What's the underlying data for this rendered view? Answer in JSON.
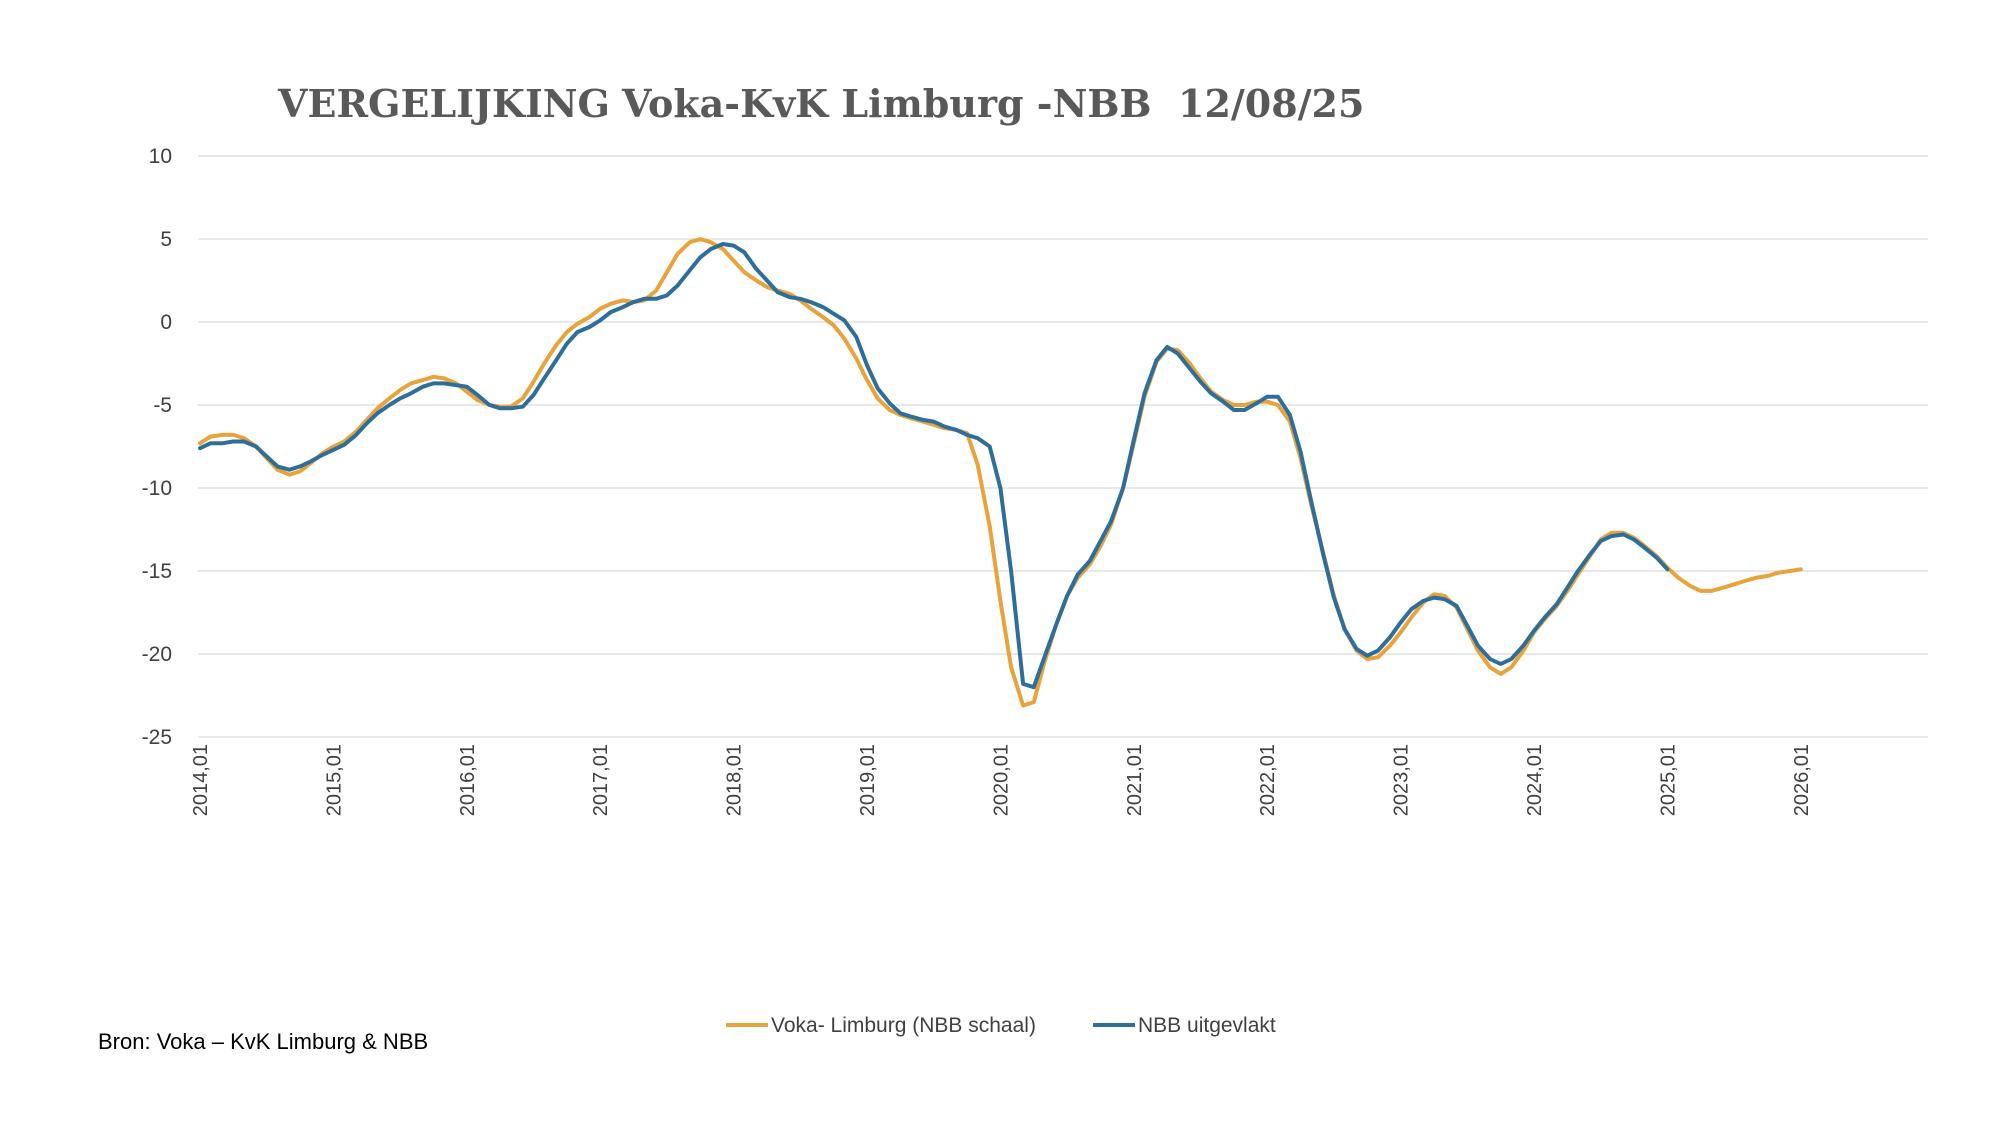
{
  "title_parts": [
    "VERGELIJKING",
    "Voka-KvK Limburg -NBB",
    "12/08/25"
  ],
  "source": "Bron: Voka – KvK Limburg & NBB",
  "chart_data": {
    "type": "line",
    "title": "VERGELIJKING      Voka-KvK Limburg -NBB      12/08/25",
    "xlabel": "",
    "ylabel": "",
    "ylim": [
      -25,
      10
    ],
    "yticks": [
      10,
      5,
      0,
      -5,
      -10,
      -15,
      -20,
      -25
    ],
    "xticks": [
      "2014,01",
      "2015,01",
      "2016,01",
      "2017,01",
      "2018,01",
      "2019,01",
      "2020,01",
      "2021,01",
      "2022,01",
      "2023,01",
      "2024,01",
      "2025,01",
      "2026,01"
    ],
    "grid": true,
    "legend": "bottom",
    "series": [
      {
        "name": "Voka- Limburg (NBB schaal)",
        "color": "#E8A33A",
        "points": [
          [
            2014.0,
            -7.3
          ],
          [
            2014.08,
            -6.9
          ],
          [
            2014.17,
            -6.8
          ],
          [
            2014.25,
            -6.8
          ],
          [
            2014.33,
            -7.0
          ],
          [
            2014.42,
            -7.5
          ],
          [
            2014.5,
            -8.2
          ],
          [
            2014.58,
            -8.9
          ],
          [
            2014.67,
            -9.2
          ],
          [
            2014.75,
            -9.0
          ],
          [
            2014.83,
            -8.5
          ],
          [
            2014.92,
            -7.9
          ],
          [
            2015.0,
            -7.5
          ],
          [
            2015.08,
            -7.2
          ],
          [
            2015.17,
            -6.6
          ],
          [
            2015.25,
            -5.9
          ],
          [
            2015.33,
            -5.2
          ],
          [
            2015.42,
            -4.6
          ],
          [
            2015.5,
            -4.1
          ],
          [
            2015.58,
            -3.7
          ],
          [
            2015.67,
            -3.5
          ],
          [
            2015.75,
            -3.3
          ],
          [
            2015.83,
            -3.4
          ],
          [
            2015.92,
            -3.7
          ],
          [
            2016.0,
            -4.2
          ],
          [
            2016.08,
            -4.7
          ],
          [
            2016.17,
            -5.0
          ],
          [
            2016.25,
            -5.1
          ],
          [
            2016.33,
            -5.1
          ],
          [
            2016.42,
            -4.6
          ],
          [
            2016.5,
            -3.6
          ],
          [
            2016.58,
            -2.5
          ],
          [
            2016.67,
            -1.4
          ],
          [
            2016.75,
            -0.6
          ],
          [
            2016.83,
            -0.1
          ],
          [
            2016.92,
            0.3
          ],
          [
            2017.0,
            0.8
          ],
          [
            2017.08,
            1.1
          ],
          [
            2017.17,
            1.3
          ],
          [
            2017.25,
            1.2
          ],
          [
            2017.33,
            1.3
          ],
          [
            2017.42,
            1.9
          ],
          [
            2017.5,
            3.0
          ],
          [
            2017.58,
            4.1
          ],
          [
            2017.67,
            4.8
          ],
          [
            2017.75,
            5.0
          ],
          [
            2017.83,
            4.8
          ],
          [
            2017.92,
            4.4
          ],
          [
            2018.0,
            3.7
          ],
          [
            2018.08,
            3.0
          ],
          [
            2018.17,
            2.5
          ],
          [
            2018.25,
            2.1
          ],
          [
            2018.33,
            1.9
          ],
          [
            2018.42,
            1.7
          ],
          [
            2018.5,
            1.3
          ],
          [
            2018.58,
            0.8
          ],
          [
            2018.67,
            0.3
          ],
          [
            2018.75,
            -0.2
          ],
          [
            2018.83,
            -1.0
          ],
          [
            2018.92,
            -2.2
          ],
          [
            2019.0,
            -3.5
          ],
          [
            2019.08,
            -4.6
          ],
          [
            2019.17,
            -5.3
          ],
          [
            2019.25,
            -5.6
          ],
          [
            2019.33,
            -5.8
          ],
          [
            2019.42,
            -6.0
          ],
          [
            2019.5,
            -6.2
          ],
          [
            2019.58,
            -6.4
          ],
          [
            2019.67,
            -6.5
          ],
          [
            2019.75,
            -6.7
          ],
          [
            2019.83,
            -8.6
          ],
          [
            2019.92,
            -12.3
          ],
          [
            2020.0,
            -16.8
          ],
          [
            2020.08,
            -20.8
          ],
          [
            2020.17,
            -23.1
          ],
          [
            2020.25,
            -22.9
          ],
          [
            2020.33,
            -20.5
          ],
          [
            2020.42,
            -18.2
          ],
          [
            2020.5,
            -16.5
          ],
          [
            2020.58,
            -15.4
          ],
          [
            2020.67,
            -14.6
          ],
          [
            2020.75,
            -13.5
          ],
          [
            2020.83,
            -12.2
          ],
          [
            2020.92,
            -10.0
          ],
          [
            2021.0,
            -7.3
          ],
          [
            2021.08,
            -4.5
          ],
          [
            2021.17,
            -2.4
          ],
          [
            2021.25,
            -1.6
          ],
          [
            2021.33,
            -1.7
          ],
          [
            2021.42,
            -2.5
          ],
          [
            2021.5,
            -3.4
          ],
          [
            2021.58,
            -4.2
          ],
          [
            2021.67,
            -4.7
          ],
          [
            2021.75,
            -5.0
          ],
          [
            2021.83,
            -5.0
          ],
          [
            2021.92,
            -4.8
          ],
          [
            2022.0,
            -4.8
          ],
          [
            2022.08,
            -5.0
          ],
          [
            2022.17,
            -6.0
          ],
          [
            2022.25,
            -8.2
          ],
          [
            2022.33,
            -11.0
          ],
          [
            2022.42,
            -13.9
          ],
          [
            2022.5,
            -16.5
          ],
          [
            2022.58,
            -18.5
          ],
          [
            2022.67,
            -19.8
          ],
          [
            2022.75,
            -20.3
          ],
          [
            2022.83,
            -20.2
          ],
          [
            2022.92,
            -19.5
          ],
          [
            2023.0,
            -18.7
          ],
          [
            2023.08,
            -17.8
          ],
          [
            2023.17,
            -16.9
          ],
          [
            2023.25,
            -16.4
          ],
          [
            2023.33,
            -16.5
          ],
          [
            2023.42,
            -17.2
          ],
          [
            2023.5,
            -18.5
          ],
          [
            2023.58,
            -19.8
          ],
          [
            2023.67,
            -20.8
          ],
          [
            2023.75,
            -21.2
          ],
          [
            2023.83,
            -20.8
          ],
          [
            2023.92,
            -19.8
          ],
          [
            2024.0,
            -18.7
          ],
          [
            2024.08,
            -17.9
          ],
          [
            2024.17,
            -17.1
          ],
          [
            2024.25,
            -16.2
          ],
          [
            2024.33,
            -15.2
          ],
          [
            2024.42,
            -14.1
          ],
          [
            2024.5,
            -13.1
          ],
          [
            2024.58,
            -12.7
          ],
          [
            2024.67,
            -12.7
          ],
          [
            2024.75,
            -13.0
          ],
          [
            2024.83,
            -13.5
          ],
          [
            2024.92,
            -14.1
          ],
          [
            2025.0,
            -14.8
          ],
          [
            2025.08,
            -15.4
          ],
          [
            2025.17,
            -15.9
          ],
          [
            2025.25,
            -16.2
          ],
          [
            2025.33,
            -16.2
          ],
          [
            2025.42,
            -16.0
          ],
          [
            2025.5,
            -15.8
          ],
          [
            2025.58,
            -15.6
          ],
          [
            2025.67,
            -15.4
          ],
          [
            2025.75,
            -15.3
          ],
          [
            2025.83,
            -15.1
          ],
          [
            2025.92,
            -15.0
          ],
          [
            2026.0,
            -14.9
          ]
        ]
      },
      {
        "name": "NBB  uitgevlakt",
        "color": "#2E6E9B",
        "points": [
          [
            2014.0,
            -7.6
          ],
          [
            2014.08,
            -7.3
          ],
          [
            2014.17,
            -7.3
          ],
          [
            2014.25,
            -7.2
          ],
          [
            2014.33,
            -7.2
          ],
          [
            2014.42,
            -7.5
          ],
          [
            2014.5,
            -8.1
          ],
          [
            2014.58,
            -8.7
          ],
          [
            2014.67,
            -8.9
          ],
          [
            2014.75,
            -8.7
          ],
          [
            2014.83,
            -8.4
          ],
          [
            2014.92,
            -8.0
          ],
          [
            2015.0,
            -7.7
          ],
          [
            2015.08,
            -7.4
          ],
          [
            2015.17,
            -6.8
          ],
          [
            2015.25,
            -6.1
          ],
          [
            2015.33,
            -5.5
          ],
          [
            2015.42,
            -5.0
          ],
          [
            2015.5,
            -4.6
          ],
          [
            2015.58,
            -4.3
          ],
          [
            2015.67,
            -3.9
          ],
          [
            2015.75,
            -3.7
          ],
          [
            2015.83,
            -3.7
          ],
          [
            2015.92,
            -3.8
          ],
          [
            2016.0,
            -3.9
          ],
          [
            2016.08,
            -4.4
          ],
          [
            2016.17,
            -5.0
          ],
          [
            2016.25,
            -5.2
          ],
          [
            2016.33,
            -5.2
          ],
          [
            2016.42,
            -5.1
          ],
          [
            2016.5,
            -4.4
          ],
          [
            2016.58,
            -3.4
          ],
          [
            2016.67,
            -2.3
          ],
          [
            2016.75,
            -1.3
          ],
          [
            2016.83,
            -0.6
          ],
          [
            2016.92,
            -0.3
          ],
          [
            2017.0,
            0.1
          ],
          [
            2017.08,
            0.6
          ],
          [
            2017.17,
            0.9
          ],
          [
            2017.25,
            1.2
          ],
          [
            2017.33,
            1.4
          ],
          [
            2017.42,
            1.4
          ],
          [
            2017.5,
            1.6
          ],
          [
            2017.58,
            2.2
          ],
          [
            2017.67,
            3.1
          ],
          [
            2017.75,
            3.9
          ],
          [
            2017.83,
            4.4
          ],
          [
            2017.92,
            4.7
          ],
          [
            2018.0,
            4.6
          ],
          [
            2018.08,
            4.2
          ],
          [
            2018.17,
            3.2
          ],
          [
            2018.25,
            2.5
          ],
          [
            2018.33,
            1.8
          ],
          [
            2018.42,
            1.5
          ],
          [
            2018.5,
            1.4
          ],
          [
            2018.58,
            1.2
          ],
          [
            2018.67,
            0.9
          ],
          [
            2018.75,
            0.5
          ],
          [
            2018.83,
            0.1
          ],
          [
            2018.92,
            -0.9
          ],
          [
            2019.0,
            -2.6
          ],
          [
            2019.08,
            -4.0
          ],
          [
            2019.17,
            -4.9
          ],
          [
            2019.25,
            -5.5
          ],
          [
            2019.33,
            -5.7
          ],
          [
            2019.42,
            -5.9
          ],
          [
            2019.5,
            -6.0
          ],
          [
            2019.58,
            -6.3
          ],
          [
            2019.67,
            -6.5
          ],
          [
            2019.75,
            -6.8
          ],
          [
            2019.83,
            -7.0
          ],
          [
            2019.92,
            -7.5
          ],
          [
            2020.0,
            -10.0
          ],
          [
            2020.08,
            -15.0
          ],
          [
            2020.17,
            -21.8
          ],
          [
            2020.25,
            -22.0
          ],
          [
            2020.33,
            -20.2
          ],
          [
            2020.42,
            -18.2
          ],
          [
            2020.5,
            -16.5
          ],
          [
            2020.58,
            -15.2
          ],
          [
            2020.67,
            -14.4
          ],
          [
            2020.75,
            -13.2
          ],
          [
            2020.83,
            -12.0
          ],
          [
            2020.92,
            -10.0
          ],
          [
            2021.0,
            -7.1
          ],
          [
            2021.08,
            -4.3
          ],
          [
            2021.17,
            -2.3
          ],
          [
            2021.25,
            -1.5
          ],
          [
            2021.33,
            -1.9
          ],
          [
            2021.42,
            -2.8
          ],
          [
            2021.5,
            -3.6
          ],
          [
            2021.58,
            -4.3
          ],
          [
            2021.67,
            -4.8
          ],
          [
            2021.75,
            -5.3
          ],
          [
            2021.83,
            -5.3
          ],
          [
            2021.92,
            -4.9
          ],
          [
            2022.0,
            -4.5
          ],
          [
            2022.08,
            -4.5
          ],
          [
            2022.17,
            -5.6
          ],
          [
            2022.25,
            -7.8
          ],
          [
            2022.33,
            -10.8
          ],
          [
            2022.42,
            -14.0
          ],
          [
            2022.5,
            -16.6
          ],
          [
            2022.58,
            -18.5
          ],
          [
            2022.67,
            -19.7
          ],
          [
            2022.75,
            -20.1
          ],
          [
            2022.83,
            -19.8
          ],
          [
            2022.92,
            -19.0
          ],
          [
            2023.0,
            -18.1
          ],
          [
            2023.08,
            -17.3
          ],
          [
            2023.17,
            -16.8
          ],
          [
            2023.25,
            -16.6
          ],
          [
            2023.33,
            -16.7
          ],
          [
            2023.42,
            -17.1
          ],
          [
            2023.5,
            -18.3
          ],
          [
            2023.58,
            -19.5
          ],
          [
            2023.67,
            -20.3
          ],
          [
            2023.75,
            -20.6
          ],
          [
            2023.83,
            -20.3
          ],
          [
            2023.92,
            -19.5
          ],
          [
            2024.0,
            -18.6
          ],
          [
            2024.08,
            -17.8
          ],
          [
            2024.17,
            -17.0
          ],
          [
            2024.25,
            -16.0
          ],
          [
            2024.33,
            -15.0
          ],
          [
            2024.42,
            -14.0
          ],
          [
            2024.5,
            -13.2
          ],
          [
            2024.58,
            -12.9
          ],
          [
            2024.67,
            -12.8
          ],
          [
            2024.75,
            -13.1
          ],
          [
            2024.83,
            -13.6
          ],
          [
            2024.92,
            -14.2
          ],
          [
            2025.0,
            -14.9
          ]
        ]
      }
    ]
  }
}
